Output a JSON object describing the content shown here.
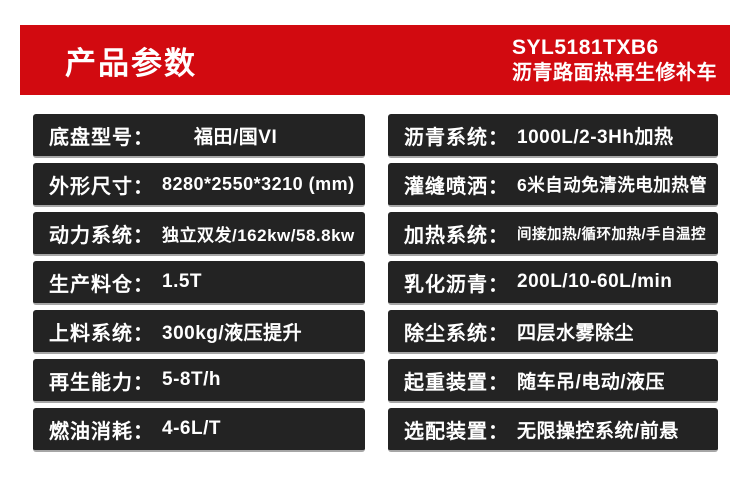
{
  "header": {
    "title": "产品参数",
    "model": "SYL5181TXB6",
    "product_name": "沥青路面热再生修补车",
    "accent_color": "#d20a10",
    "text_color": "#ffffff"
  },
  "specs": {
    "box_color": "#232323",
    "box_edge_color": "#a6a6a6",
    "left": [
      {
        "label": "底盘型号：",
        "value": "福田/国VI"
      },
      {
        "label": "外形尺寸：",
        "value": "8280*2550*3210 (mm)"
      },
      {
        "label": "动力系统：",
        "value": "独立双发/162kw/58.8kw"
      },
      {
        "label": "生产料仓：",
        "value": "1.5T"
      },
      {
        "label": "上料系统：",
        "value": "300kg/液压提升"
      },
      {
        "label": "再生能力：",
        "value": "5-8T/h"
      },
      {
        "label": "燃油消耗：",
        "value": "4-6L/T"
      }
    ],
    "right": [
      {
        "label": "沥青系统：",
        "value": "1000L/2-3Hh加热"
      },
      {
        "label": "灌缝喷洒：",
        "value": "6米自动免清洗电加热管"
      },
      {
        "label": "加热系统：",
        "value": "间接加热/循环加热/手自温控"
      },
      {
        "label": "乳化沥青：",
        "value": "200L/10-60L/min"
      },
      {
        "label": "除尘系统：",
        "value": "四层水雾除尘"
      },
      {
        "label": "起重装置：",
        "value": "随车吊/电动/液压"
      },
      {
        "label": "选配装置：",
        "value": "无限操控系统/前悬"
      }
    ]
  }
}
